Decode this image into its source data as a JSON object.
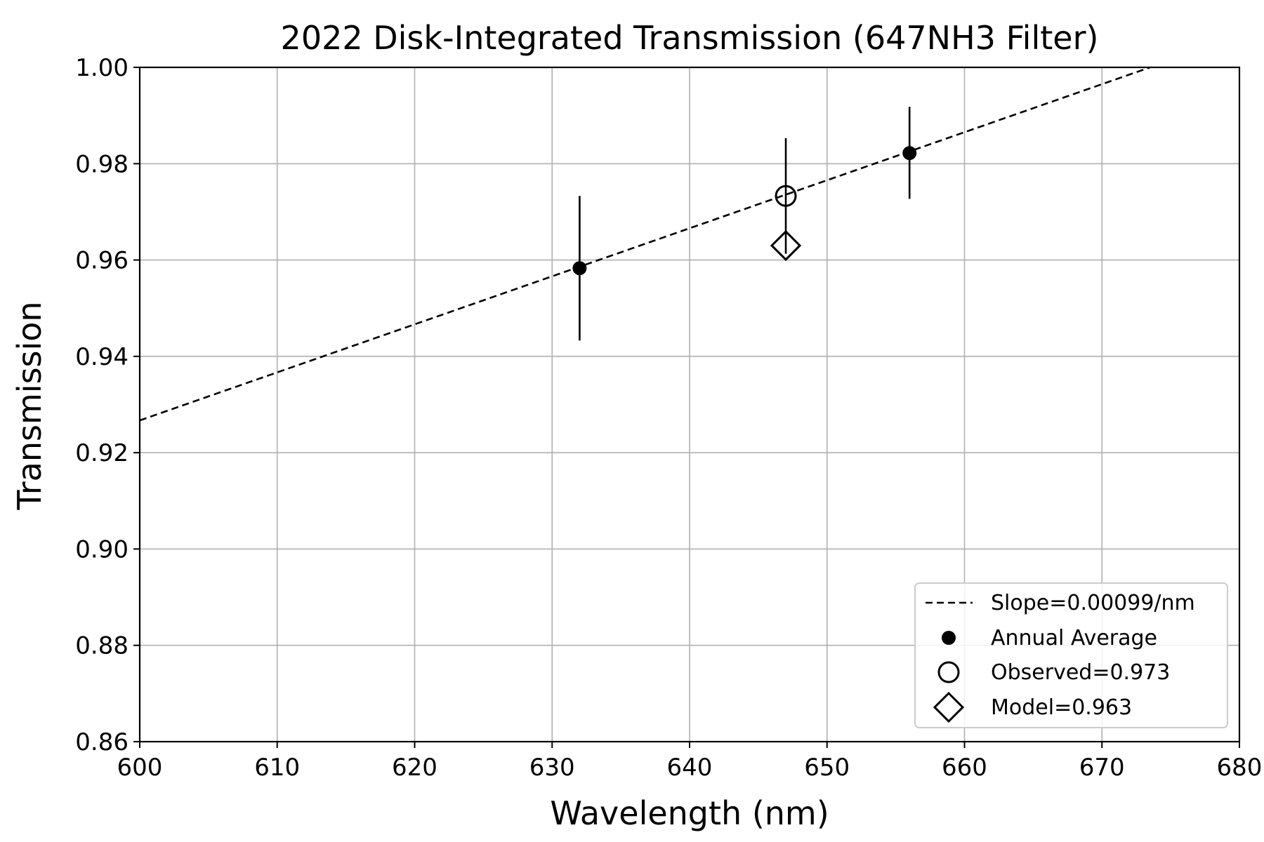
{
  "chart_data": {
    "type": "scatter",
    "title": "2022 Disk-Integrated Transmission (647NH3 Filter)",
    "xlabel": "Wavelength (nm)",
    "ylabel": "Transmission",
    "xlim": [
      600,
      680
    ],
    "ylim": [
      0.86,
      1.0
    ],
    "xticks": [
      600,
      610,
      620,
      630,
      640,
      650,
      660,
      670,
      680
    ],
    "xtick_labels": [
      "600",
      "610",
      "620",
      "630",
      "640",
      "650",
      "660",
      "670",
      "680"
    ],
    "yticks": [
      0.86,
      0.88,
      0.9,
      0.92,
      0.94,
      0.96,
      0.98,
      1.0
    ],
    "ytick_labels": [
      "0.86",
      "0.88",
      "0.90",
      "0.92",
      "0.94",
      "0.96",
      "0.98",
      "1.00"
    ],
    "grid": true,
    "legend_position": "bottom-right",
    "series": [
      {
        "name": "Slope=0.00099/nm",
        "kind": "line",
        "style": "dashed",
        "x": [
          600,
          673.5
        ],
        "y": [
          0.9267,
          1.0
        ]
      },
      {
        "name": "Annual Average",
        "kind": "points",
        "marker": "filled-circle",
        "points": [
          {
            "x": 632,
            "y": 0.9583,
            "err_low": 0.9433,
            "err_high": 0.9733
          },
          {
            "x": 656,
            "y": 0.9822,
            "err_low": 0.9727,
            "err_high": 0.9918
          }
        ]
      },
      {
        "name": "Observed=0.973",
        "kind": "points",
        "marker": "open-circle",
        "points": [
          {
            "x": 647,
            "y": 0.9733,
            "err_low": 0.9613,
            "err_high": 0.9853
          }
        ]
      },
      {
        "name": "Model=0.963",
        "kind": "points",
        "marker": "open-diamond",
        "points": [
          {
            "x": 647,
            "y": 0.963
          }
        ]
      }
    ]
  }
}
